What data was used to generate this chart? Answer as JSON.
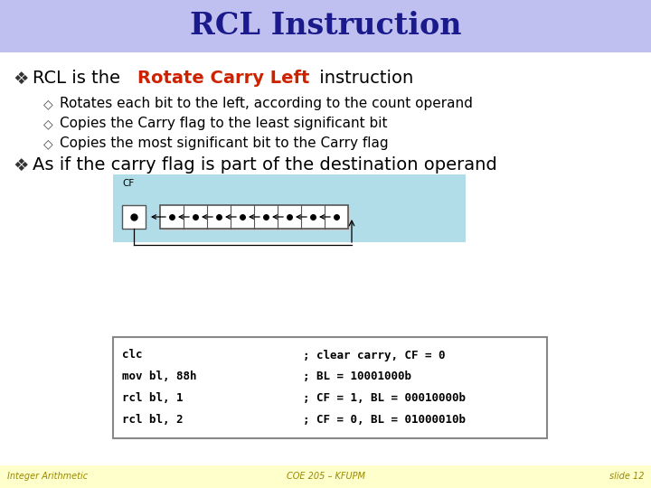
{
  "title": "RCL Instruction",
  "title_color": "#1a1a8c",
  "title_bg": "#c0c0f0",
  "bg_color": "#ffffff",
  "content_bg": "#f8f8f8",
  "footer_bg": "#ffffcc",
  "footer_left": "Integer Arithmetic",
  "footer_center": "COE 205 – KFUPM",
  "footer_right": "slide 12",
  "bullet1_pre": "RCL is the ",
  "bullet1_highlight": "Rotate Carry Left",
  "bullet1_post": " instruction",
  "highlight_color": "#cc2200",
  "sub_bullets": [
    "Rotates each bit to the left, according to the count operand",
    "Copies the Carry flag to the least significant bit",
    "Copies the most significant bit to the Carry flag"
  ],
  "bullet2": "As if the carry flag is part of the destination operand",
  "diagram_bg": "#b0dde8",
  "code_lines": [
    [
      "clc         ",
      "; clear carry, CF = 0"
    ],
    [
      "mov bl, 88h ",
      "; BL = 10001000b"
    ],
    [
      "rcl bl, 1   ",
      "; CF = 1, BL = 00010000b"
    ],
    [
      "rcl bl, 2   ",
      "; CF = 0, BL = 01000010b"
    ]
  ]
}
